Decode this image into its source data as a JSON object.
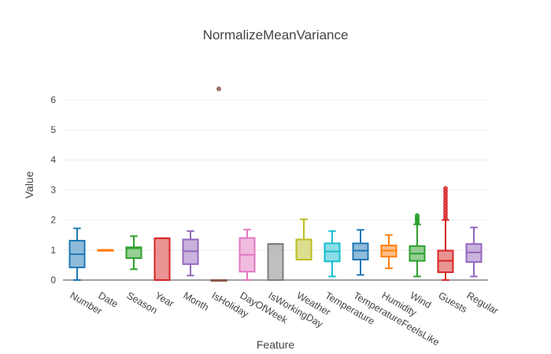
{
  "chart_data": {
    "type": "box",
    "title": "NormalizeMeanVariance",
    "xlabel": "Feature",
    "ylabel": "Value",
    "ylim": [
      0,
      7
    ],
    "yticks": [
      0,
      1,
      2,
      3,
      4,
      5,
      6
    ],
    "grid": true,
    "series": [
      {
        "name": "Number",
        "color": "#1f77b4",
        "min": 0.0,
        "q1": 0.42,
        "median": 0.86,
        "q3": 1.31,
        "max": 1.72,
        "outliers": []
      },
      {
        "name": "Date",
        "color": "#ff7f0e",
        "min": 1.0,
        "q1": 1.0,
        "median": 1.0,
        "q3": 1.0,
        "max": 1.0,
        "outliers": []
      },
      {
        "name": "Season",
        "color": "#2ca02c",
        "min": 0.36,
        "q1": 0.73,
        "median": 1.06,
        "q3": 1.09,
        "max": 1.46,
        "outliers": []
      },
      {
        "name": "Year",
        "color": "#d62728",
        "min": 0.0,
        "q1": 0.0,
        "median": 1.39,
        "q3": 1.39,
        "max": 1.39,
        "outliers": []
      },
      {
        "name": "Month",
        "color": "#9467bd",
        "min": 0.15,
        "q1": 0.53,
        "median": 0.96,
        "q3": 1.35,
        "max": 1.63,
        "outliers": []
      },
      {
        "name": "IsHoliday",
        "color": "#8c564b",
        "min": 0.0,
        "q1": 0.0,
        "median": 0.0,
        "q3": 0.0,
        "max": 0.0,
        "outliers": [
          6.36
        ]
      },
      {
        "name": "DayOfWeek",
        "color": "#e377c2",
        "min": 0.0,
        "q1": 0.28,
        "median": 0.84,
        "q3": 1.4,
        "max": 1.68,
        "outliers": []
      },
      {
        "name": "IsWorkingDay",
        "color": "#7f7f7f",
        "min": 0.0,
        "q1": 0.0,
        "median": 1.2,
        "q3": 1.2,
        "max": 1.2,
        "outliers": []
      },
      {
        "name": "Weather",
        "color": "#bcbd22",
        "min": 0.68,
        "q1": 0.68,
        "median": 0.68,
        "q3": 1.35,
        "max": 2.02,
        "outliers": []
      },
      {
        "name": "Temperature",
        "color": "#17becf",
        "min": 0.12,
        "q1": 0.62,
        "median": 0.95,
        "q3": 1.22,
        "max": 1.63,
        "outliers": []
      },
      {
        "name": "TemperatureFeelsLike",
        "color": "#1f77b4",
        "min": 0.17,
        "q1": 0.68,
        "median": 0.98,
        "q3": 1.22,
        "max": 1.67,
        "outliers": []
      },
      {
        "name": "Humidity",
        "color": "#ff7f0e",
        "min": 0.39,
        "q1": 0.78,
        "median": 0.98,
        "q3": 1.15,
        "max": 1.5,
        "outliers": []
      },
      {
        "name": "Wind",
        "color": "#2ca02c",
        "min": 0.12,
        "q1": 0.64,
        "median": 0.88,
        "q3": 1.13,
        "max": 1.85,
        "outliers": [
          1.9,
          1.95,
          2.0,
          2.05,
          2.1,
          2.15
        ]
      },
      {
        "name": "Guests",
        "color": "#d62728",
        "min": 0.0,
        "q1": 0.26,
        "median": 0.64,
        "q3": 0.98,
        "max": 2.0,
        "outliers": [
          2.05,
          2.15,
          2.25,
          2.35,
          2.45,
          2.55,
          2.65,
          2.75,
          2.85,
          2.95,
          3.05
        ]
      },
      {
        "name": "Regular",
        "color": "#9467bd",
        "min": 0.12,
        "q1": 0.6,
        "median": 0.92,
        "q3": 1.2,
        "max": 1.75,
        "outliers": []
      }
    ]
  }
}
